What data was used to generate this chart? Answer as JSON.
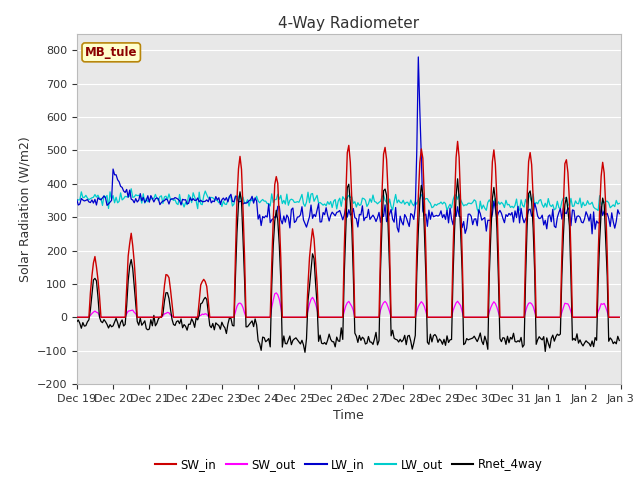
{
  "title": "4-Way Radiometer",
  "xlabel": "Time",
  "ylabel": "Solar Radiation (W/m2)",
  "ylim": [
    -200,
    850
  ],
  "yticks": [
    -200,
    -100,
    0,
    100,
    200,
    300,
    400,
    500,
    600,
    700,
    800
  ],
  "station_label": "MB_tule",
  "fig_bg_color": "#ffffff",
  "plot_bg_color": "#e8e8e8",
  "grid_color": "#ffffff",
  "colors": {
    "SW_in": "#cc0000",
    "SW_out": "#ff00ff",
    "LW_in": "#0000cc",
    "LW_out": "#00cccc",
    "Rnet_4way": "#000000"
  },
  "date_labels": [
    "Dec 19",
    "Dec 20",
    "Dec 21",
    "Dec 22",
    "Dec 23",
    "Dec 24",
    "Dec 25",
    "Dec 26",
    "Dec 27",
    "Dec 28",
    "Dec 29",
    "Dec 30",
    "Dec 31",
    "Jan 1",
    "Jan 2",
    "Jan 3"
  ]
}
